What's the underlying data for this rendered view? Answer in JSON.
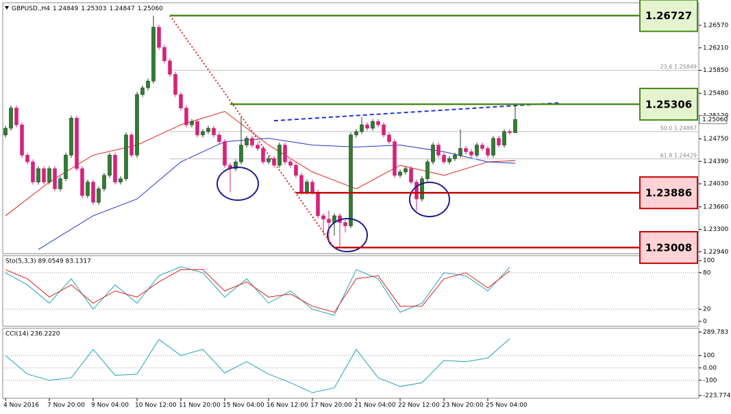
{
  "chart_data": [
    {
      "type": "candlestick",
      "title": "GBPUSD.,H4",
      "ohlc_header": [
        "1.24849",
        "1.25303",
        "1.24847",
        "1.25060"
      ],
      "xlim": [
        -0.5,
        126.5
      ],
      "ylim": [
        1.2291,
        1.26933
      ],
      "yticks": [
        {
          "value": 1.2657,
          "label": "1.26570"
        },
        {
          "value": 1.2621,
          "label": "1.26210"
        },
        {
          "value": 1.2585,
          "label": "1.25850"
        },
        {
          "value": 1.2548,
          "label": "1.25480"
        },
        {
          "value": 1.2512,
          "label": "1.25120"
        },
        {
          "value": 1.2475,
          "label": "1.24750"
        },
        {
          "value": 1.2439,
          "label": "1.24390"
        },
        {
          "value": 1.2403,
          "label": "1.24030"
        },
        {
          "value": 1.2366,
          "label": "1.23660"
        },
        {
          "value": 1.233,
          "label": "1.23300"
        },
        {
          "value": 1.2294,
          "label": "1.22940"
        }
      ],
      "up_color": "#2f7d32",
      "down_color": "#d6237a",
      "open": [
        1.24813,
        1.24921,
        1.25245,
        1.24975,
        1.24489,
        1.24381,
        1.24057,
        1.24273,
        1.24057,
        1.24273,
        1.23949,
        1.24111,
        1.24489,
        1.25083,
        1.24273,
        1.23841,
        1.24057,
        1.23733,
        1.23949,
        1.24165,
        1.24489,
        1.24057,
        1.24111,
        1.24813,
        1.24489,
        1.25461,
        1.25569,
        1.25677,
        1.26541,
        1.26217,
        1.26001,
        1.25785,
        1.25461,
        1.25245,
        1.24975,
        1.25029,
        1.24813,
        1.24867,
        1.24921,
        1.24813,
        1.24705,
        1.24327,
        1.24273,
        1.24381,
        1.24651,
        1.24759,
        1.24651,
        1.24597,
        1.24381,
        1.24435,
        1.24327,
        1.24651,
        1.24381,
        1.24327,
        1.24165,
        1.23895,
        1.24057,
        1.23895,
        1.23517,
        1.23463,
        1.23409,
        1.23517,
        1.23409,
        1.23355,
        1.24813,
        1.24867,
        1.24975,
        1.24921,
        1.25029,
        1.24975,
        1.24813,
        1.24705,
        1.24165,
        1.24219,
        1.24273,
        1.24057,
        1.23787,
        1.24111,
        1.24381,
        1.24651,
        1.24489,
        1.24381,
        1.24435,
        1.24489,
        1.24597,
        1.24543,
        1.24489,
        1.24651,
        1.24597,
        1.24489,
        1.24759,
        1.24651,
        1.24867,
        1.24849
      ],
      "high": [
        1.24961,
        1.25285,
        1.25285,
        1.25015,
        1.24529,
        1.24421,
        1.24313,
        1.24313,
        1.24313,
        1.24313,
        1.24151,
        1.24529,
        1.25123,
        1.25123,
        1.24313,
        1.24097,
        1.24097,
        1.23989,
        1.24205,
        1.24529,
        1.24529,
        1.24151,
        1.24853,
        1.24853,
        1.25501,
        1.25609,
        1.25717,
        1.26727,
        1.26581,
        1.26257,
        1.26041,
        1.25825,
        1.25501,
        1.25285,
        1.25069,
        1.25069,
        1.24907,
        1.24961,
        1.24961,
        1.24853,
        1.24745,
        1.24367,
        1.24421,
        1.251,
        1.24799,
        1.24799,
        1.24691,
        1.24637,
        1.24475,
        1.24475,
        1.24691,
        1.24691,
        1.24421,
        1.24367,
        1.24205,
        1.24097,
        1.24097,
        1.23935,
        1.23557,
        1.236,
        1.23557,
        1.23557,
        1.23449,
        1.24853,
        1.24907,
        1.251,
        1.25015,
        1.25069,
        1.25069,
        1.25015,
        1.24853,
        1.24745,
        1.24259,
        1.24313,
        1.24313,
        1.24097,
        1.24151,
        1.24421,
        1.24691,
        1.24691,
        1.24529,
        1.24475,
        1.24529,
        1.249,
        1.24637,
        1.24583,
        1.24691,
        1.24691,
        1.24637,
        1.24799,
        1.24799,
        1.24907,
        1.24907,
        1.25303
      ],
      "low": [
        1.24773,
        1.24881,
        1.24935,
        1.24449,
        1.24341,
        1.24017,
        1.24017,
        1.24017,
        1.24017,
        1.23909,
        1.23909,
        1.24071,
        1.24449,
        1.24233,
        1.23801,
        1.23801,
        1.23693,
        1.23693,
        1.23909,
        1.24125,
        1.24017,
        1.24017,
        1.24071,
        1.24449,
        1.24449,
        1.25421,
        1.25529,
        1.25637,
        1.26177,
        1.25961,
        1.25745,
        1.25421,
        1.25205,
        1.24935,
        1.24935,
        1.24773,
        1.24773,
        1.24827,
        1.24773,
        1.24665,
        1.24287,
        1.239,
        1.24233,
        1.24341,
        1.24611,
        1.24611,
        1.24557,
        1.24341,
        1.24341,
        1.24287,
        1.24287,
        1.24341,
        1.24287,
        1.24125,
        1.23855,
        1.23855,
        1.23855,
        1.23477,
        1.232,
        1.2315,
        1.232,
        1.23008,
        1.2325,
        1.23315,
        1.24773,
        1.24827,
        1.24881,
        1.24881,
        1.24935,
        1.24773,
        1.24665,
        1.24125,
        1.24125,
        1.24179,
        1.24017,
        1.236,
        1.23747,
        1.24071,
        1.24341,
        1.24449,
        1.24341,
        1.24341,
        1.24395,
        1.24449,
        1.24503,
        1.24449,
        1.24449,
        1.24557,
        1.24449,
        1.24449,
        1.24611,
        1.24611,
        1.24809,
        1.24847
      ],
      "close": [
        1.24921,
        1.25245,
        1.24975,
        1.24489,
        1.24381,
        1.24057,
        1.24273,
        1.24057,
        1.24273,
        1.23949,
        1.24111,
        1.24489,
        1.25083,
        1.24273,
        1.23841,
        1.24057,
        1.23733,
        1.23949,
        1.24165,
        1.24489,
        1.24057,
        1.24111,
        1.24813,
        1.24489,
        1.25461,
        1.25569,
        1.25677,
        1.26541,
        1.26217,
        1.26001,
        1.25785,
        1.25461,
        1.25245,
        1.24975,
        1.25029,
        1.24813,
        1.24867,
        1.24921,
        1.24813,
        1.24705,
        1.24327,
        1.24273,
        1.24381,
        1.24651,
        1.24759,
        1.24651,
        1.24597,
        1.24381,
        1.24435,
        1.24327,
        1.24651,
        1.24381,
        1.24327,
        1.24165,
        1.23895,
        1.24057,
        1.23895,
        1.23517,
        1.23463,
        1.23409,
        1.23517,
        1.23409,
        1.23355,
        1.24813,
        1.24867,
        1.24975,
        1.24921,
        1.25029,
        1.24975,
        1.24813,
        1.24705,
        1.24165,
        1.24219,
        1.24273,
        1.24057,
        1.23787,
        1.24111,
        1.24381,
        1.24651,
        1.24489,
        1.24381,
        1.24435,
        1.24489,
        1.24597,
        1.24543,
        1.24489,
        1.24651,
        1.24597,
        1.24489,
        1.24759,
        1.24651,
        1.24867,
        1.24849,
        1.2506
      ],
      "lines": [
        {
          "color": "#e0201b",
          "x": [
            0,
            8,
            16,
            24,
            32,
            40,
            48,
            56,
            64,
            72,
            80,
            88,
            93
          ],
          "values": [
            1.23517,
            1.24057,
            1.24489,
            1.24651,
            1.24975,
            1.25191,
            1.24651,
            1.24219,
            1.23949,
            1.24327,
            1.24165,
            1.24381,
            1.24403
          ]
        },
        {
          "color": "#1f35c8",
          "x": [
            6,
            16,
            24,
            32,
            40,
            48,
            56,
            64,
            72,
            80,
            88,
            93
          ],
          "values": [
            1.22977,
            1.23517,
            1.23787,
            1.24381,
            1.24705,
            1.24759,
            1.24651,
            1.24619,
            1.24651,
            1.24543,
            1.24381,
            1.24359
          ]
        }
      ],
      "levels": [
        {
          "value": 1.26727,
          "start": 30,
          "color": "#4a8a1c",
          "fill": "#e3f4cf"
        },
        {
          "value": 1.25306,
          "start": 41,
          "color": "#4a8a1c",
          "fill": "#e3f4cf"
        },
        {
          "value": 1.23886,
          "start": 53,
          "color": "#c80000",
          "fill": "#ffd3d6"
        },
        {
          "value": 1.23008,
          "start": 60,
          "color": "#c80000",
          "fill": "#ffd3d6"
        }
      ],
      "fib_start": 30,
      "fib": [
        {
          "value": 1.25849,
          "label": "23.6 1.25849"
        },
        {
          "value": 1.24867,
          "label": "50.0 1.24867"
        },
        {
          "value": 1.24429,
          "label": "61.8 1.24429"
        }
      ],
      "trendlines": [
        {
          "color": "#1f35e0",
          "dash": "6 4",
          "x": [
            49,
            101
          ],
          "values": [
            1.25041,
            1.25327
          ]
        },
        {
          "color": "#e0201b",
          "dash": "2 3",
          "x": [
            30,
            60
          ],
          "values": [
            1.26727,
            1.23008
          ]
        }
      ],
      "current_price": {
        "value": 1.2506,
        "label": "1.25060"
      }
    },
    {
      "type": "line",
      "title": "Sto(5,3,3) 89.0549 83.1317",
      "xlim": [
        -0.5,
        126.5
      ],
      "ylim": [
        -8,
        108
      ],
      "yticks": [
        100,
        80,
        20,
        0
      ],
      "levels": [
        80,
        20
      ],
      "lines": [
        {
          "color": "#1fa3b5",
          "x": [
            0,
            4,
            8,
            12,
            16,
            20,
            24,
            28,
            32,
            36,
            40,
            44,
            48,
            52,
            56,
            60,
            64,
            68,
            72,
            76,
            80,
            84,
            88,
            92
          ],
          "values": [
            80,
            60,
            30,
            70,
            20,
            60,
            30,
            75,
            90,
            80,
            40,
            70,
            30,
            50,
            20,
            10,
            85,
            70,
            15,
            30,
            80,
            75,
            50,
            89.0549
          ]
        },
        {
          "color": "#e0201b",
          "x": [
            0,
            4,
            8,
            12,
            16,
            20,
            24,
            28,
            32,
            36,
            40,
            44,
            48,
            52,
            56,
            60,
            64,
            68,
            72,
            76,
            80,
            84,
            88,
            92
          ],
          "values": [
            85,
            70,
            40,
            60,
            30,
            50,
            40,
            65,
            85,
            85,
            50,
            65,
            40,
            45,
            25,
            15,
            70,
            75,
            25,
            25,
            70,
            80,
            55,
            83.1317
          ]
        }
      ]
    },
    {
      "type": "line",
      "title": "CCI(14) 236.2220",
      "xlim": [
        -0.5,
        126.5
      ],
      "ylim": [
        -245,
        320
      ],
      "yticks": [
        289.783,
        100,
        {
          "value": 0,
          "label": "0.00"
        },
        -100,
        -223.7745
      ],
      "levels": [
        100,
        0,
        -100
      ],
      "lines": [
        {
          "color": "#1fa3b5",
          "x": [
            0,
            4,
            8,
            12,
            16,
            20,
            24,
            28,
            32,
            36,
            40,
            44,
            48,
            52,
            56,
            60,
            64,
            68,
            72,
            76,
            80,
            84,
            88,
            92
          ],
          "values": [
            100,
            -50,
            -100,
            -80,
            150,
            -60,
            -50,
            230,
            100,
            150,
            -40,
            50,
            -50,
            -120,
            -200,
            -160,
            150,
            -80,
            -150,
            -120,
            60,
            50,
            80,
            236.222
          ]
        }
      ],
      "xticks": [
        {
          "value": 0,
          "label": "4 Nov 2016"
        },
        {
          "value": 8,
          "label": "7 Nov 20:00"
        },
        {
          "value": 16,
          "label": "9 Nov 04:00"
        },
        {
          "value": 24,
          "label": "10 Nov 12:00"
        },
        {
          "value": 32,
          "label": "11 Nov 20:00"
        },
        {
          "value": 40,
          "label": "15 Nov 04:00"
        },
        {
          "value": 48,
          "label": "16 Nov 12:00"
        },
        {
          "value": 56,
          "label": "17 Nov 20:00"
        },
        {
          "value": 64,
          "label": "21 Nov 04:00"
        },
        {
          "value": 72,
          "label": "22 Nov 12:00"
        },
        {
          "value": 80,
          "label": "23 Nov 20:00"
        },
        {
          "value": 88,
          "label": "25 Nov 04:00"
        }
      ]
    }
  ]
}
